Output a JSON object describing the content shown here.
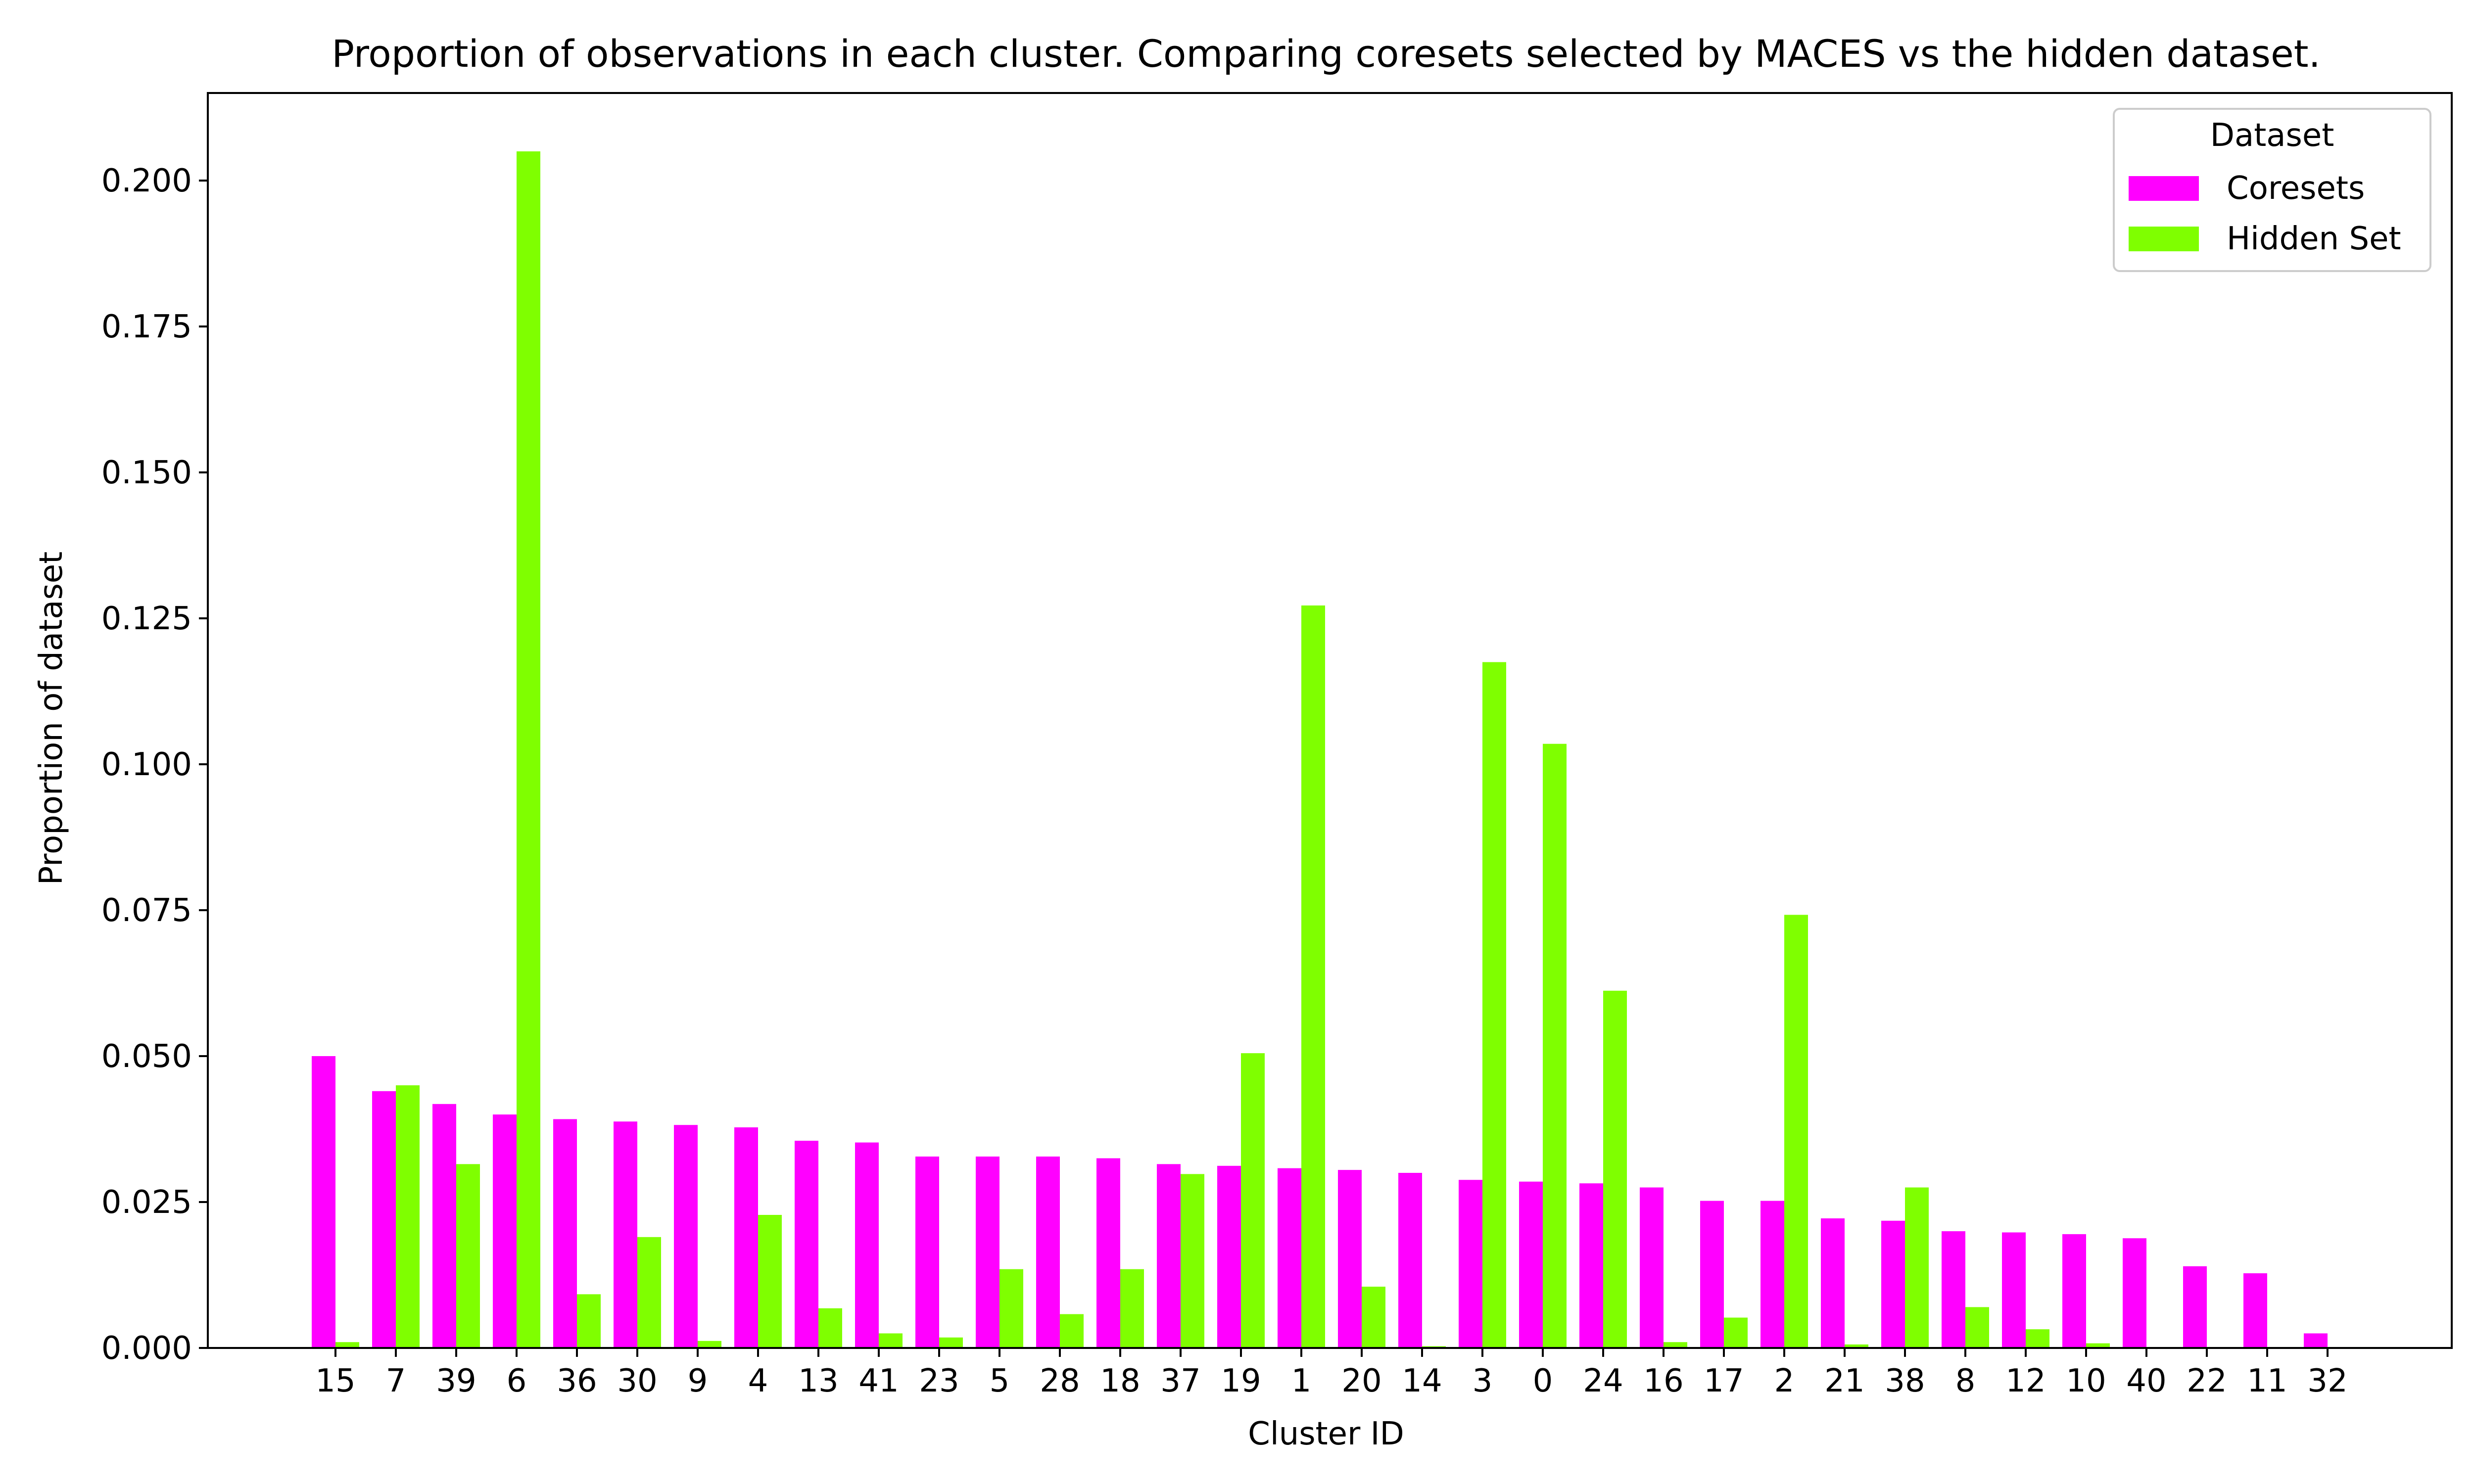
{
  "chart_data": {
    "type": "bar",
    "title": "Proportion of observations in each cluster. Comparing coresets selected by MACES vs the hidden dataset.",
    "xlabel": "Cluster ID",
    "ylabel": "Proportion of dataset",
    "ylim": [
      0,
      0.215
    ],
    "yticks": [
      0.0,
      0.025,
      0.05,
      0.075,
      0.1,
      0.125,
      0.15,
      0.175,
      0.2
    ],
    "ytick_labels": [
      "0.000",
      "0.025",
      "0.050",
      "0.075",
      "0.100",
      "0.125",
      "0.150",
      "0.175",
      "0.200"
    ],
    "grid": false,
    "legend": {
      "title": "Dataset",
      "position": "top-right"
    },
    "categories": [
      "15",
      "7",
      "39",
      "6",
      "36",
      "30",
      "9",
      "4",
      "13",
      "41",
      "23",
      "5",
      "28",
      "18",
      "37",
      "19",
      "1",
      "20",
      "14",
      "3",
      "0",
      "24",
      "16",
      "17",
      "2",
      "21",
      "38",
      "8",
      "12",
      "10",
      "40",
      "22",
      "11",
      "32"
    ],
    "series": [
      {
        "name": "Coresets",
        "color": "#ff00ff",
        "values": [
          0.05,
          0.044,
          0.0418,
          0.04,
          0.0392,
          0.0388,
          0.0382,
          0.0378,
          0.0355,
          0.0352,
          0.0328,
          0.0328,
          0.0328,
          0.0325,
          0.0315,
          0.0312,
          0.0308,
          0.0305,
          0.03,
          0.0288,
          0.0285,
          0.0282,
          0.0275,
          0.0252,
          0.0252,
          0.0222,
          0.0218,
          0.02,
          0.0198,
          0.0195,
          0.0188,
          0.014,
          0.0128,
          0.0025
        ]
      },
      {
        "name": "Hidden Set",
        "color": "#7fff00",
        "values": [
          0.001,
          0.045,
          0.0315,
          0.205,
          0.0092,
          0.019,
          0.0012,
          0.0228,
          0.0068,
          0.0025,
          0.0018,
          0.0135,
          0.0058,
          0.0135,
          0.0298,
          0.0505,
          0.1272,
          0.0105,
          0.0003,
          0.1175,
          0.1035,
          0.0612,
          0.001,
          0.0052,
          0.0742,
          0.0006,
          0.0275,
          0.007,
          0.0032,
          0.0008,
          0.0,
          0.0,
          0.0,
          0.0
        ]
      }
    ]
  }
}
